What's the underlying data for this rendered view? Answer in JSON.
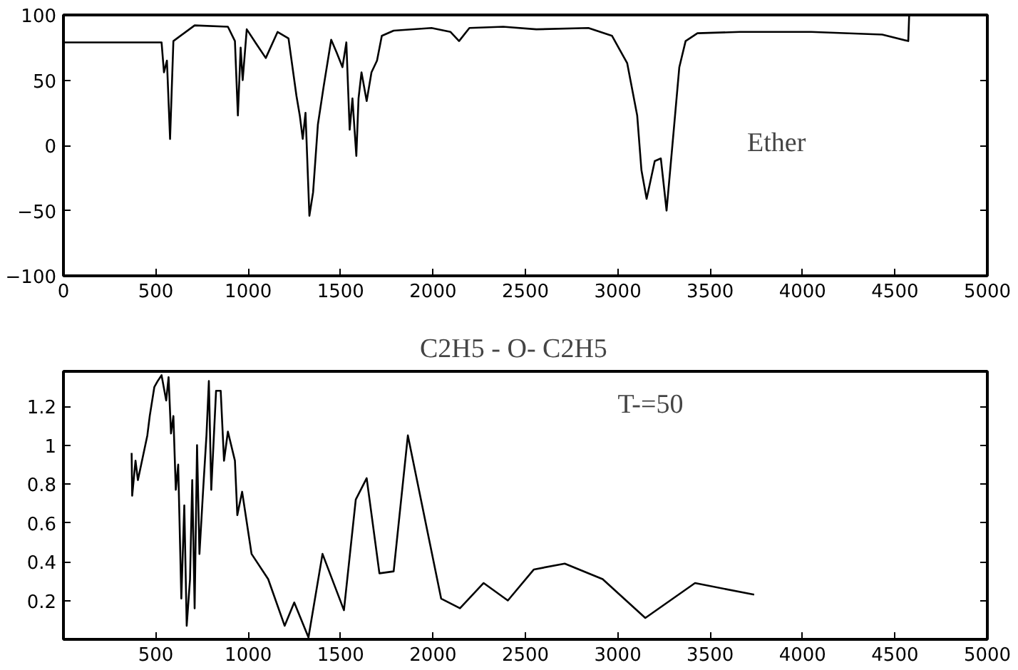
{
  "chart_data": [
    {
      "type": "line",
      "xlim": [
        0,
        5000
      ],
      "ylim": [
        -100,
        100
      ],
      "xticks": [
        0,
        500,
        1000,
        1500,
        2000,
        2500,
        3000,
        3500,
        4000,
        4500,
        5000
      ],
      "yticks": [
        -100,
        -50,
        0,
        50,
        100
      ],
      "grid": false,
      "annotations": [
        "Ether"
      ],
      "series": [
        {
          "color": "#000000",
          "x": [
            0,
            531,
            544,
            560,
            577,
            595,
            710,
            890,
            928,
            944,
            959,
            970,
            992,
            1043,
            1095,
            1159,
            1218,
            1261,
            1279,
            1295,
            1310,
            1331,
            1351,
            1377,
            1408,
            1449,
            1479,
            1510,
            1531,
            1549,
            1564,
            1585,
            1597,
            1613,
            1641,
            1667,
            1697,
            1723,
            1787,
            1992,
            2095,
            2141,
            2197,
            2380,
            2559,
            2841,
            2969,
            3008,
            3051,
            3105,
            3128,
            3156,
            3200,
            3233,
            3264,
            3303,
            3333,
            3367,
            3431,
            3661,
            4046,
            4431,
            4572,
            4577
          ],
          "values": [
            79,
            79,
            56,
            65,
            5,
            80,
            92,
            91,
            80,
            23,
            75,
            50,
            89,
            78,
            67,
            87,
            82,
            38,
            23,
            5,
            25,
            -54,
            -36,
            16,
            45,
            81,
            71,
            60,
            79,
            12,
            36,
            -8,
            36,
            56,
            34,
            56,
            65,
            84,
            88,
            90,
            87,
            80,
            90,
            91,
            89,
            90,
            84,
            74,
            63,
            23,
            -19,
            -41,
            -12,
            -10,
            -50,
            12,
            60,
            80,
            86,
            87,
            87,
            85,
            80,
            100
          ]
        }
      ]
    },
    {
      "type": "line",
      "title": "C2H5 - O- C2H5",
      "xlim": [
        0,
        5000
      ],
      "ylim": [
        0,
        1.38
      ],
      "xticks": [
        500,
        1000,
        1500,
        2000,
        2500,
        3000,
        3500,
        4000,
        4500,
        5000
      ],
      "yticks": [
        0.2,
        0.4,
        0.6,
        0.8,
        1,
        1.2
      ],
      "grid": false,
      "annotations": [
        "T-=50"
      ],
      "series": [
        {
          "color": "#000000",
          "x": [
            369,
            372,
            390,
            403,
            454,
            467,
            492,
            510,
            531,
            556,
            569,
            582,
            595,
            608,
            621,
            638,
            654,
            667,
            685,
            697,
            710,
            723,
            736,
            756,
            774,
            787,
            800,
            826,
            851,
            869,
            890,
            928,
            941,
            967,
            1018,
            1108,
            1197,
            1249,
            1326,
            1402,
            1518,
            1582,
            1641,
            1710,
            1787,
            1864,
            2044,
            2146,
            2274,
            2405,
            2546,
            2713,
            2918,
            3149,
            3418,
            3738
          ],
          "values": [
            0.96,
            0.74,
            0.92,
            0.82,
            1.05,
            1.15,
            1.3,
            1.33,
            1.36,
            1.23,
            1.35,
            1.06,
            1.15,
            0.77,
            0.9,
            0.21,
            0.69,
            0.07,
            0.31,
            0.82,
            0.16,
            1.0,
            0.44,
            0.77,
            1.05,
            1.33,
            0.77,
            1.28,
            1.28,
            0.92,
            1.07,
            0.92,
            0.64,
            0.76,
            0.44,
            0.31,
            0.07,
            0.19,
            0.01,
            0.44,
            0.15,
            0.72,
            0.83,
            0.34,
            0.35,
            1.05,
            0.21,
            0.16,
            0.29,
            0.2,
            0.36,
            0.39,
            0.31,
            0.11,
            0.29,
            0.23
          ]
        }
      ]
    }
  ]
}
